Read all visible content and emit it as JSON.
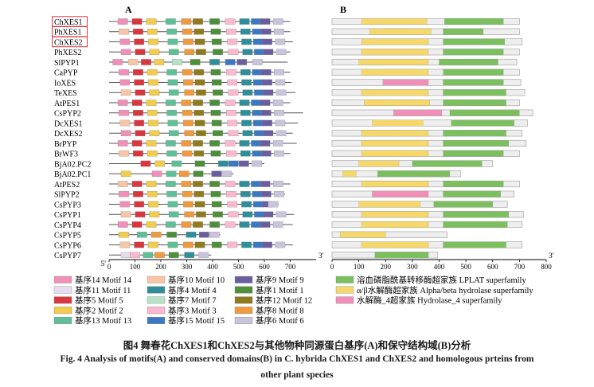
{
  "panels": {
    "a": "A",
    "b": "B"
  },
  "axis": {
    "a": {
      "ticks": [
        0,
        100,
        200,
        300,
        400,
        500,
        600,
        700
      ],
      "start": "5'",
      "end": "3'",
      "max": 800
    },
    "b": {
      "ticks": [
        0,
        100,
        200,
        300,
        400,
        500,
        600,
        700,
        800
      ],
      "end": "3'",
      "max": 800
    }
  },
  "species": [
    {
      "name": "ChXES1",
      "highlight": true,
      "len": 700
    },
    {
      "name": "PhXES1",
      "highlight": true,
      "len": 700
    },
    {
      "name": "ChXES2",
      "highlight": true,
      "len": 710
    },
    {
      "name": "PhXES2",
      "highlight": false,
      "len": 700
    },
    {
      "name": "SlPYP1",
      "highlight": false,
      "len": 690
    },
    {
      "name": "CaPYP",
      "highlight": false,
      "len": 700
    },
    {
      "name": "IoXES",
      "highlight": false,
      "len": 705
    },
    {
      "name": "TeXES",
      "highlight": false,
      "len": 720
    },
    {
      "name": "AtPES1",
      "highlight": false,
      "len": 700
    },
    {
      "name": "CsPYP2",
      "highlight": false,
      "len": 750
    },
    {
      "name": "DcXES1",
      "highlight": false,
      "len": 730
    },
    {
      "name": "DcXES2",
      "highlight": false,
      "len": 710
    },
    {
      "name": "BrPYP",
      "highlight": false,
      "len": 725
    },
    {
      "name": "BrWF3",
      "highlight": false,
      "len": 700
    },
    {
      "name": "BjA02.PC2",
      "highlight": false,
      "len": 600
    },
    {
      "name": "BjA02.PC1",
      "highlight": false,
      "len": 480
    },
    {
      "name": "AtPES2",
      "highlight": false,
      "len": 700
    },
    {
      "name": "SlPYP2",
      "highlight": false,
      "len": 680
    },
    {
      "name": "CsPYP3",
      "highlight": false,
      "len": 655
    },
    {
      "name": "CsPYP1",
      "highlight": false,
      "len": 715
    },
    {
      "name": "CsPYP4",
      "highlight": false,
      "len": 710
    },
    {
      "name": "CsPYP5",
      "highlight": false,
      "len": 430
    },
    {
      "name": "CsPYP6",
      "highlight": false,
      "len": 710
    },
    {
      "name": "CsPYP7",
      "highlight": false,
      "len": 395
    }
  ],
  "motifs": [
    {
      "id": 14,
      "label": "基序14 Motif 14",
      "color": "#f08fb8"
    },
    {
      "id": 10,
      "label": "基序10 Motif 10",
      "color": "#f6c6a6"
    },
    {
      "id": 9,
      "label": "基序9 Motif 9",
      "color": "#6b5e9e"
    },
    {
      "id": 11,
      "label": "基序11 Motif 11",
      "color": "#e6dcef"
    },
    {
      "id": 4,
      "label": "基序4 Motif 4",
      "color": "#2e8f9a"
    },
    {
      "id": 1,
      "label": "基序1 Motif 1",
      "color": "#4e8f3a"
    },
    {
      "id": 5,
      "label": "基序5 Motif 5",
      "color": "#d9363e"
    },
    {
      "id": 7,
      "label": "基序7 Motif 7",
      "color": "#b6e3c8"
    },
    {
      "id": 12,
      "label": "基序12 Motif 12",
      "color": "#8f7a1e"
    },
    {
      "id": 2,
      "label": "基序2 Motif 2",
      "color": "#f2cc4a"
    },
    {
      "id": 3,
      "label": "基序3 Motif 3",
      "color": "#fbb8cf"
    },
    {
      "id": 8,
      "label": "基序8 Motif 8",
      "color": "#ef9a3e"
    },
    {
      "id": 13,
      "label": "基序13 Motif 13",
      "color": "#5fbf96"
    },
    {
      "id": 15,
      "label": "基序15 Motif 15",
      "color": "#3b78c4"
    },
    {
      "id": 6,
      "label": "基序6 Motif 6",
      "color": "#c8c4dc"
    }
  ],
  "domains": [
    {
      "id": "lplat",
      "label": "溶血磷脂酰基转移酶超家族 LPLAT superfamily",
      "color": "#7cbf5e"
    },
    {
      "id": "abh",
      "label": "α/β水解酶超家族 Alpha/beta hydrolase superfamily",
      "color": "#f6d86a"
    },
    {
      "id": "h4",
      "label": "水解酶_4超家族 Hydrolase_4 superfamily",
      "color": "#f08fb8"
    }
  ],
  "captions": {
    "cn": "图4 舞春花ChXES1和ChXES2与其他物种同源蛋白基序(A)和保守结构域(B)分析",
    "en_line1": "Fig. 4 Analysis of motifs(A) and conserved domains(B) in C. hybrida ChXES1 and ChXES2 and homologous prteins from",
    "en_line2": "other plant species"
  }
}
